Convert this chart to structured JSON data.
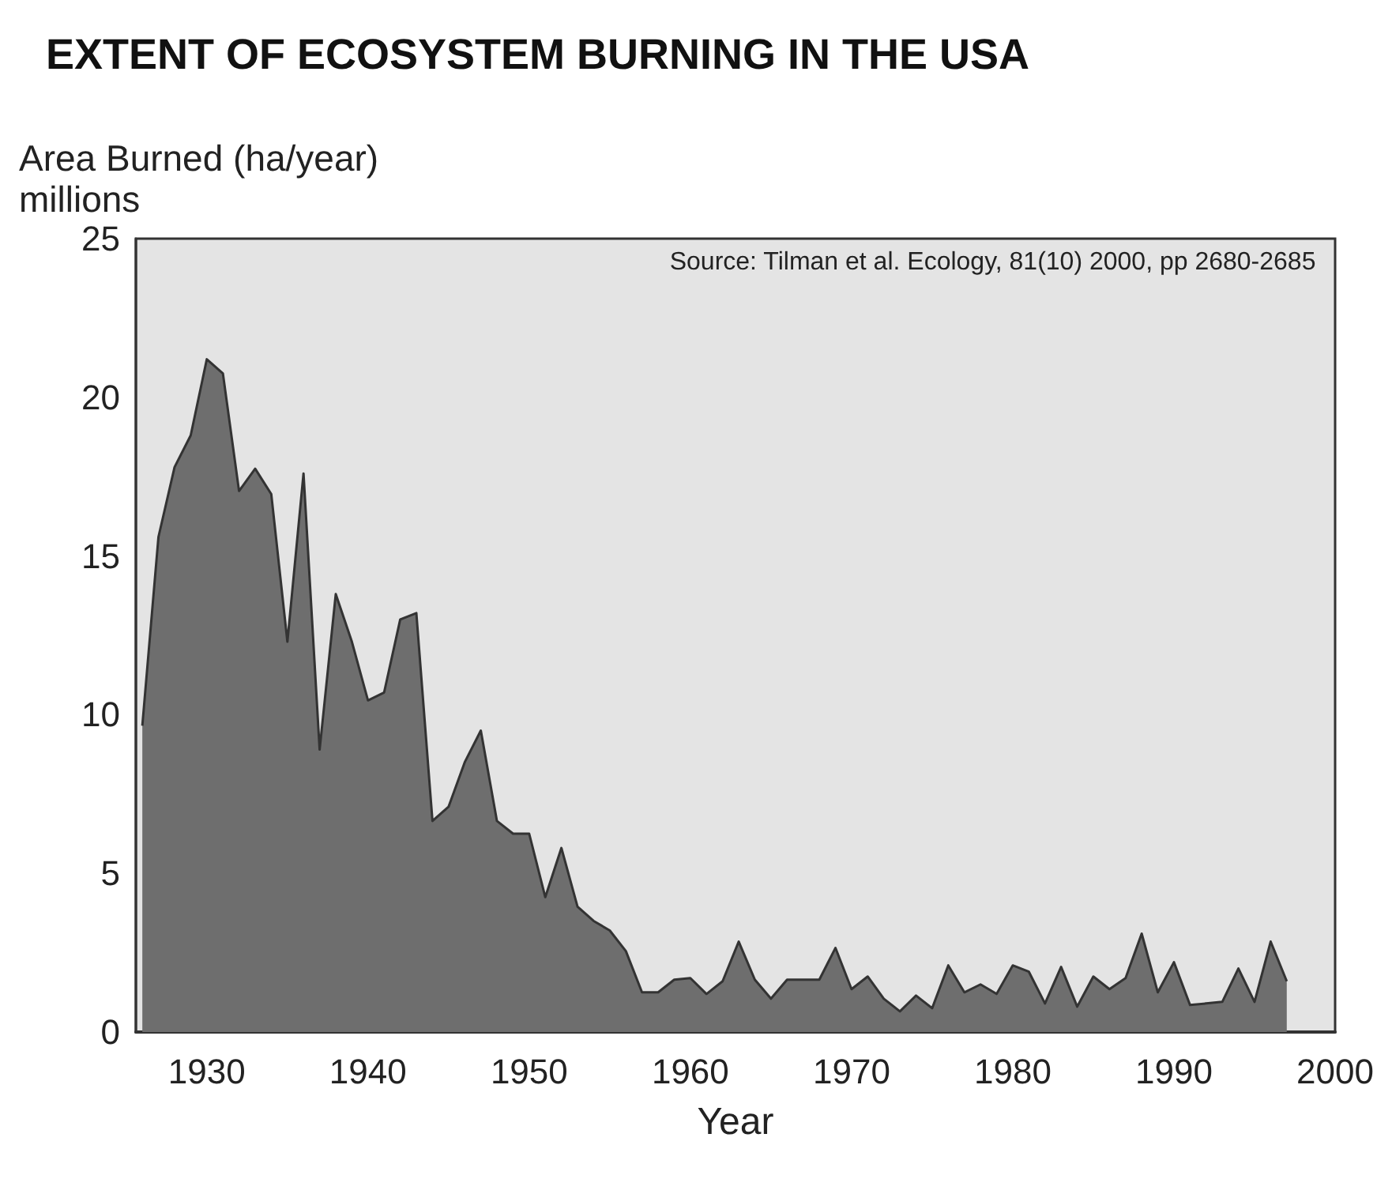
{
  "chart_data": {
    "type": "area",
    "title": "EXTENT OF ECOSYSTEM BURNING IN THE USA",
    "xlabel": "Year",
    "ylabel": "Area Burned (ha/year)\nmillions",
    "annotations": [
      "Source: Tilman et al. Ecology, 81(10) 2000, pp 2680-2685"
    ],
    "x": [
      1926,
      1927,
      1928,
      1929,
      1930,
      1931,
      1932,
      1933,
      1934,
      1935,
      1936,
      1937,
      1938,
      1939,
      1940,
      1941,
      1942,
      1943,
      1944,
      1945,
      1946,
      1947,
      1948,
      1949,
      1950,
      1951,
      1952,
      1953,
      1954,
      1955,
      1956,
      1957,
      1958,
      1959,
      1960,
      1961,
      1962,
      1963,
      1964,
      1965,
      1966,
      1967,
      1968,
      1969,
      1970,
      1971,
      1972,
      1973,
      1974,
      1975,
      1976,
      1977,
      1978,
      1979,
      1980,
      1981,
      1982,
      1983,
      1984,
      1985,
      1986,
      1987,
      1988,
      1989,
      1990,
      1991,
      1992,
      1993,
      1994,
      1995,
      1996,
      1997
    ],
    "series": [
      {
        "color": "#6e6e6e",
        "values": [
          9.65,
          15.6,
          17.8,
          18.8,
          21.2,
          20.75,
          17.05,
          17.75,
          16.95,
          12.3,
          17.6,
          8.9,
          13.8,
          12.3,
          10.45,
          10.7,
          13.0,
          13.2,
          6.65,
          7.1,
          8.5,
          9.5,
          6.65,
          6.25,
          6.25,
          4.25,
          5.8,
          3.95,
          3.5,
          3.2,
          2.55,
          1.25,
          1.25,
          1.65,
          1.7,
          1.2,
          1.6,
          2.85,
          1.65,
          1.05,
          1.65,
          1.65,
          1.65,
          2.65,
          1.35,
          1.75,
          1.05,
          0.65,
          1.15,
          0.75,
          2.1,
          1.25,
          1.5,
          1.2,
          2.1,
          1.9,
          0.9,
          2.05,
          0.8,
          1.75,
          1.35,
          1.7,
          3.1,
          1.25,
          2.2,
          0.85,
          0.9,
          0.95,
          2.0,
          0.95,
          2.85,
          1.6
        ]
      }
    ],
    "xlim": [
      1925.6,
      2000
    ],
    "xticks": [
      1930,
      1940,
      1950,
      1960,
      1970,
      1980,
      1990,
      2000
    ],
    "ylim": [
      0,
      25
    ],
    "yticks": [
      0,
      5,
      10,
      15,
      20,
      25
    ]
  }
}
